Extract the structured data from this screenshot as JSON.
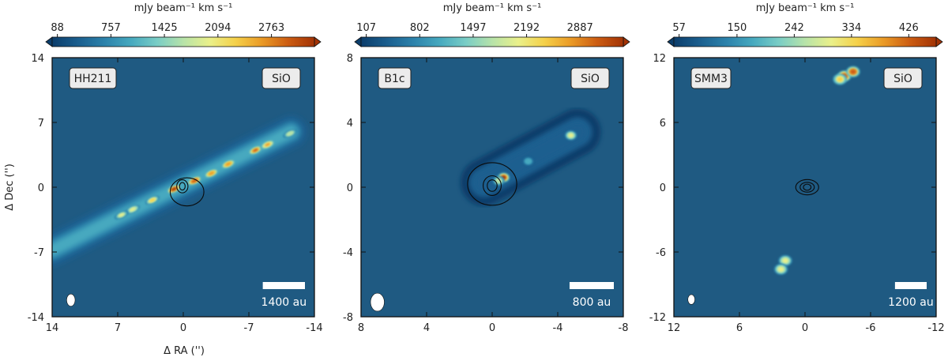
{
  "colorbar_label": "mJy beam⁻¹ km s⁻¹",
  "colormap": [
    "#0b3d6b",
    "#1b5f8f",
    "#2c82ab",
    "#46a9bf",
    "#79cdc6",
    "#b7e3a9",
    "#eaf08a",
    "#f5d049",
    "#ea9a26",
    "#cc5c12",
    "#a23305"
  ],
  "background_color": "#1f5a82",
  "contour_color": "#0a0a0a",
  "chart_data": [
    {
      "type": "heatmap",
      "source": "HH211",
      "line": "SiO",
      "xlabel": "Δ RA ('')",
      "ylabel": "Δ Dec ('')",
      "xlim": [
        14,
        -14
      ],
      "ylim": [
        -14,
        14
      ],
      "xticks": [
        14,
        7,
        0,
        -7,
        -14
      ],
      "yticks": [
        14,
        7,
        0,
        -7,
        -14
      ],
      "colorbar_ticks": [
        88,
        757,
        1425,
        2094,
        2763
      ],
      "colorbar_range": [
        88,
        3300
      ],
      "scale_bar": {
        "label": "1400 au",
        "length_arcsec": 4.5
      },
      "beam": {
        "x": 12,
        "y": -12.2,
        "major": 0.65,
        "minor": 0.45
      },
      "jet": {
        "start": [
          14,
          -6.8
        ],
        "end": [
          -11.5,
          6
        ],
        "width_arcsec": 1.6,
        "peak_value": 3250
      },
      "knots": [
        {
          "x": 1.0,
          "y": -0.2,
          "value": 3250
        },
        {
          "x": -1.2,
          "y": 0.7,
          "value": 3100
        },
        {
          "x": -3.0,
          "y": 1.5,
          "value": 2800
        },
        {
          "x": -4.8,
          "y": 2.5,
          "value": 2700
        },
        {
          "x": -7.7,
          "y": 4.0,
          "value": 2850
        },
        {
          "x": -9.0,
          "y": 4.6,
          "value": 2500
        },
        {
          "x": 3.3,
          "y": -1.4,
          "value": 2300
        },
        {
          "x": 5.4,
          "y": -2.4,
          "value": 2100
        },
        {
          "x": 6.6,
          "y": -3.0,
          "value": 1900
        },
        {
          "x": -11.4,
          "y": 5.8,
          "value": 1800
        }
      ],
      "contours": [
        {
          "x": -0.4,
          "y": -0.5,
          "rx": 1.8,
          "ry": 1.5
        },
        {
          "x": 0.1,
          "y": 0.1,
          "rx": 0.6,
          "ry": 0.7
        },
        {
          "x": 0.1,
          "y": 0.1,
          "rx": 0.3,
          "ry": 0.4
        }
      ]
    },
    {
      "type": "heatmap",
      "source": "B1c",
      "line": "SiO",
      "xlabel": "",
      "ylabel": "",
      "xlim": [
        8,
        -8
      ],
      "ylim": [
        -8,
        8
      ],
      "xticks": [
        8,
        4,
        0,
        -4,
        -8
      ],
      "yticks": [
        8,
        4,
        0,
        -4,
        -8
      ],
      "colorbar_ticks": [
        107,
        802,
        1497,
        2192,
        2887
      ],
      "colorbar_range": [
        107,
        3450
      ],
      "scale_bar": {
        "label": "800 au",
        "length_arcsec": 2.7
      },
      "beam": {
        "x": 7.0,
        "y": -7.1,
        "major": 0.55,
        "minor": 0.42
      },
      "jet": {
        "start": [
          0.5,
          0.3
        ],
        "end": [
          -5.2,
          3.4
        ],
        "width_arcsec": 1.3,
        "peak_value": 1300
      },
      "knots": [
        {
          "x": -0.7,
          "y": 0.6,
          "value": 3350
        },
        {
          "x": -0.4,
          "y": 0.4,
          "value": 1900
        },
        {
          "x": -2.2,
          "y": 1.6,
          "value": 1100
        },
        {
          "x": -4.8,
          "y": 3.2,
          "value": 2200
        }
      ],
      "contours": [
        {
          "x": 0.0,
          "y": 0.2,
          "rx": 1.5,
          "ry": 1.3
        },
        {
          "x": 0.0,
          "y": 0.1,
          "rx": 0.55,
          "ry": 0.6
        },
        {
          "x": 0.0,
          "y": 0.1,
          "rx": 0.3,
          "ry": 0.35
        }
      ]
    },
    {
      "type": "heatmap",
      "source": "SMM3",
      "line": "SiO",
      "xlabel": "",
      "ylabel": "",
      "xlim": [
        12,
        -12
      ],
      "ylim": [
        -12,
        12
      ],
      "xticks": [
        12,
        6,
        0,
        -6,
        -12
      ],
      "yticks": [
        12,
        6,
        0,
        -6,
        -12
      ],
      "colorbar_ticks": [
        57,
        150,
        242,
        334,
        426
      ],
      "colorbar_range": [
        57,
        470
      ],
      "scale_bar": {
        "label": "1200 au",
        "length_arcsec": 2.9
      },
      "beam": {
        "x": 10.4,
        "y": -10.4,
        "major": 0.45,
        "minor": 0.32
      },
      "jet": null,
      "knots": [
        {
          "x": -3.6,
          "y": 10.3,
          "value": 440
        },
        {
          "x": -4.4,
          "y": 10.7,
          "value": 430
        },
        {
          "x": -3.2,
          "y": 10.0,
          "value": 360
        },
        {
          "x": 1.8,
          "y": -6.8,
          "value": 320
        },
        {
          "x": 2.2,
          "y": -7.6,
          "value": 300
        }
      ],
      "contours": [
        {
          "x": -0.2,
          "y": 0.0,
          "rx": 1.05,
          "ry": 0.7
        },
        {
          "x": -0.2,
          "y": 0.0,
          "rx": 0.65,
          "ry": 0.45
        },
        {
          "x": -0.2,
          "y": 0.0,
          "rx": 0.35,
          "ry": 0.28
        }
      ]
    }
  ]
}
